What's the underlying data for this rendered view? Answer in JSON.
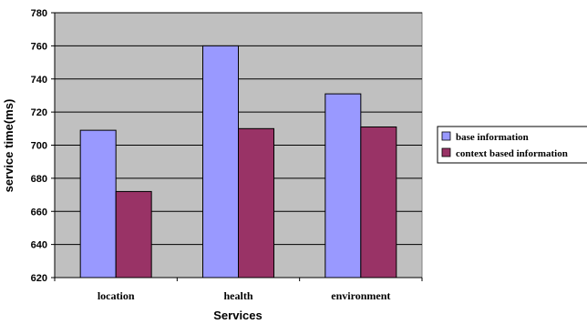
{
  "chart_data": {
    "type": "bar",
    "categories": [
      "location",
      "health",
      "environment"
    ],
    "series": [
      {
        "name": "base information",
        "values": [
          709,
          760,
          731
        ],
        "color": "#9999ff"
      },
      {
        "name": "context based information",
        "values": [
          672,
          710,
          711
        ],
        "color": "#993366"
      }
    ],
    "xlabel": "Services",
    "ylabel": "service time(ms)",
    "ylim": [
      620,
      780
    ],
    "yticks": [
      620,
      640,
      660,
      680,
      700,
      720,
      740,
      760,
      780
    ],
    "grid": true,
    "legend_position": "right",
    "plot_background": "#c0c0c0"
  }
}
